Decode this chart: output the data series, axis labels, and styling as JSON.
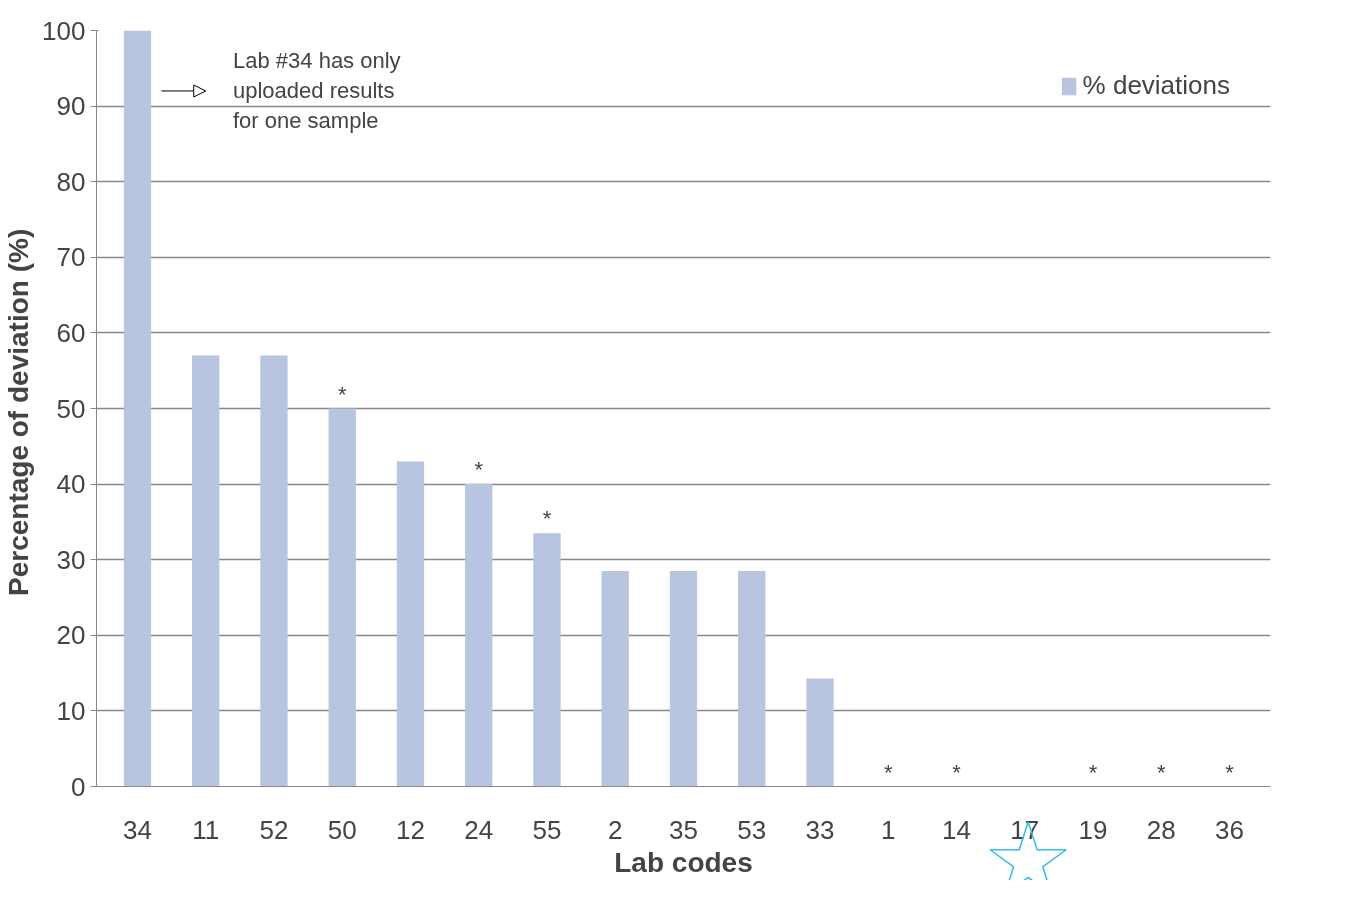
{
  "chart_data": {
    "type": "bar",
    "xlabel": "Lab codes",
    "ylabel": "Percentage of deviation  (%)",
    "categories": [
      "34",
      "11",
      "52",
      "50",
      "12",
      "24",
      "55",
      "2",
      "35",
      "53",
      "33",
      "1",
      "14",
      "17",
      "19",
      "28",
      "36"
    ],
    "series": [
      {
        "name": "% deviations",
        "color": "#b7c5e0",
        "values": [
          100,
          57,
          57,
          50,
          43,
          40,
          33.5,
          28.5,
          28.5,
          28.5,
          14.3,
          0,
          0,
          0,
          0,
          0,
          0
        ]
      }
    ],
    "ylim": [
      0,
      100
    ],
    "yticks": [
      0,
      10,
      20,
      30,
      40,
      50,
      60,
      70,
      80,
      90,
      100
    ],
    "grid": "y",
    "legend": "top right",
    "annotations": [
      "Lab #34 has only\nuploaded results\nfor one sample",
      {
        "text": "*",
        "x": "50",
        "y": 50
      },
      {
        "text": "*",
        "x": "24",
        "y": 40
      },
      {
        "text": "*",
        "x": "55",
        "y": 33.5
      },
      {
        "text": "*",
        "x": "1",
        "y": 0
      },
      {
        "text": "*",
        "x": "14",
        "y": 0
      },
      {
        "text": "*",
        "x": "19",
        "y": 0
      },
      {
        "text": "*",
        "x": "28",
        "y": 0
      },
      {
        "text": "*",
        "x": "36",
        "y": 0
      }
    ]
  }
}
